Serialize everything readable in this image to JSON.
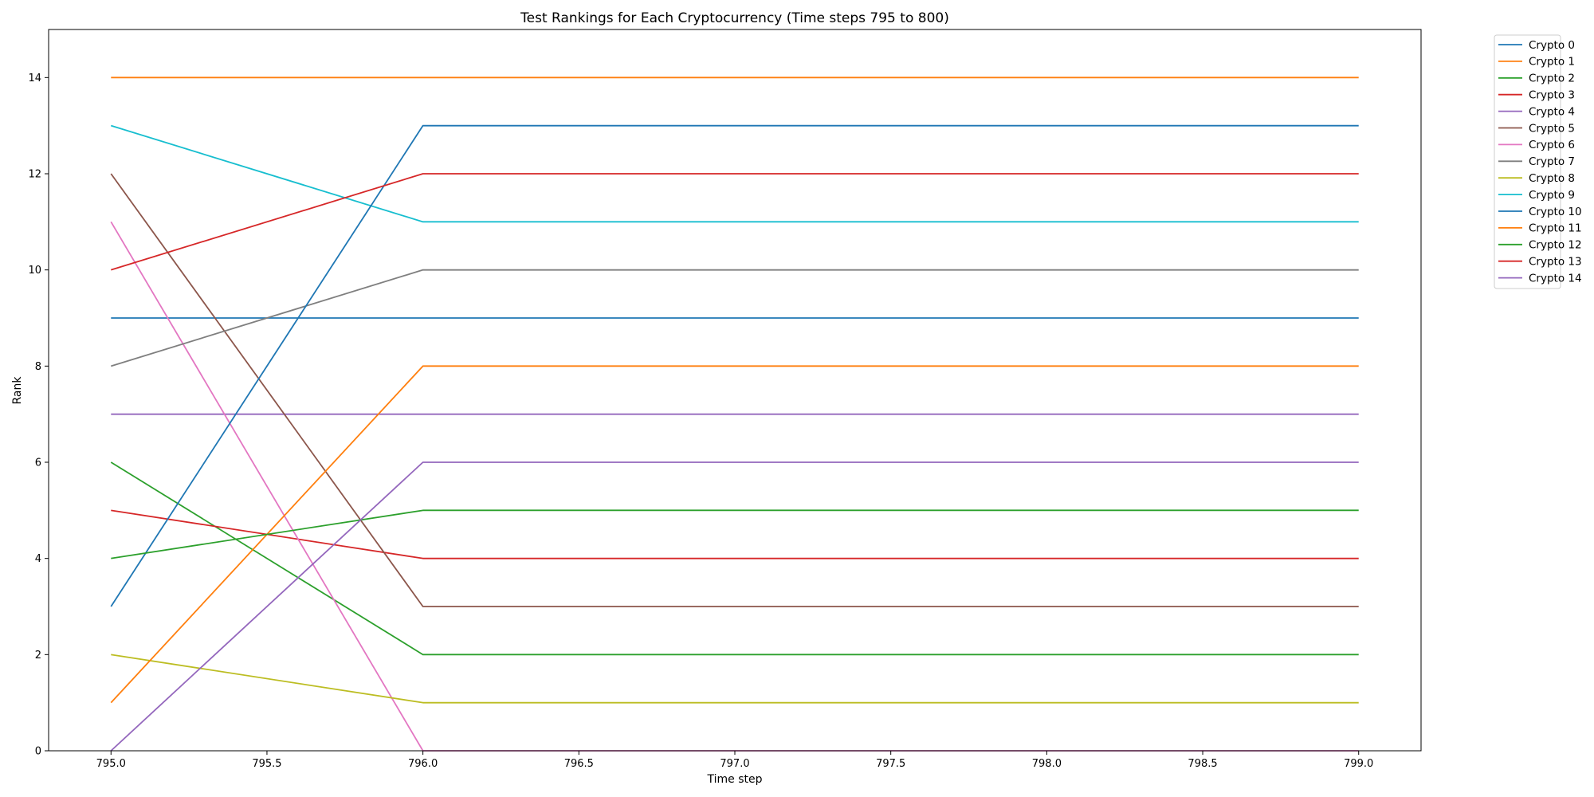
{
  "chart_data": {
    "type": "line",
    "title": "Test Rankings for Each Cryptocurrency (Time steps 795 to 800)",
    "xlabel": "Time step",
    "ylabel": "Rank",
    "x": [
      795,
      796,
      797,
      798,
      799
    ],
    "xlim": [
      794.8,
      799.2
    ],
    "ylim": [
      0,
      15
    ],
    "xticks": [
      "795.0",
      "795.5",
      "796.0",
      "796.5",
      "797.0",
      "797.5",
      "798.0",
      "798.5",
      "799.0"
    ],
    "yticks": [
      "0",
      "2",
      "4",
      "6",
      "8",
      "10",
      "12",
      "14"
    ],
    "grid": false,
    "legend_position": "outside-top-right",
    "series": [
      {
        "name": "Crypto 0",
        "color": "#1f77b4",
        "values": [
          9,
          9,
          9,
          9,
          9
        ]
      },
      {
        "name": "Crypto 1",
        "color": "#ff7f0e",
        "values": [
          14,
          14,
          14,
          14,
          14
        ]
      },
      {
        "name": "Crypto 2",
        "color": "#2ca02c",
        "values": [
          6,
          2,
          2,
          2,
          2
        ]
      },
      {
        "name": "Crypto 3",
        "color": "#d62728",
        "values": [
          5,
          4,
          4,
          4,
          4
        ]
      },
      {
        "name": "Crypto 4",
        "color": "#9467bd",
        "values": [
          7,
          7,
          7,
          7,
          7
        ]
      },
      {
        "name": "Crypto 5",
        "color": "#8c564b",
        "values": [
          12,
          3,
          3,
          3,
          3
        ]
      },
      {
        "name": "Crypto 6",
        "color": "#e377c2",
        "values": [
          11,
          0,
          0,
          0,
          0
        ]
      },
      {
        "name": "Crypto 7",
        "color": "#7f7f7f",
        "values": [
          8,
          10,
          10,
          10,
          10
        ]
      },
      {
        "name": "Crypto 8",
        "color": "#bcbd22",
        "values": [
          2,
          1,
          1,
          1,
          1
        ]
      },
      {
        "name": "Crypto 9",
        "color": "#17becf",
        "values": [
          13,
          11,
          11,
          11,
          11
        ]
      },
      {
        "name": "Crypto 10",
        "color": "#1f77b4",
        "values": [
          3,
          13,
          13,
          13,
          13
        ]
      },
      {
        "name": "Crypto 11",
        "color": "#ff7f0e",
        "values": [
          1,
          8,
          8,
          8,
          8
        ]
      },
      {
        "name": "Crypto 12",
        "color": "#2ca02c",
        "values": [
          4,
          5,
          5,
          5,
          5
        ]
      },
      {
        "name": "Crypto 13",
        "color": "#d62728",
        "values": [
          10,
          12,
          12,
          12,
          12
        ]
      },
      {
        "name": "Crypto 14",
        "color": "#9467bd",
        "values": [
          0,
          6,
          6,
          6,
          6
        ]
      }
    ]
  }
}
